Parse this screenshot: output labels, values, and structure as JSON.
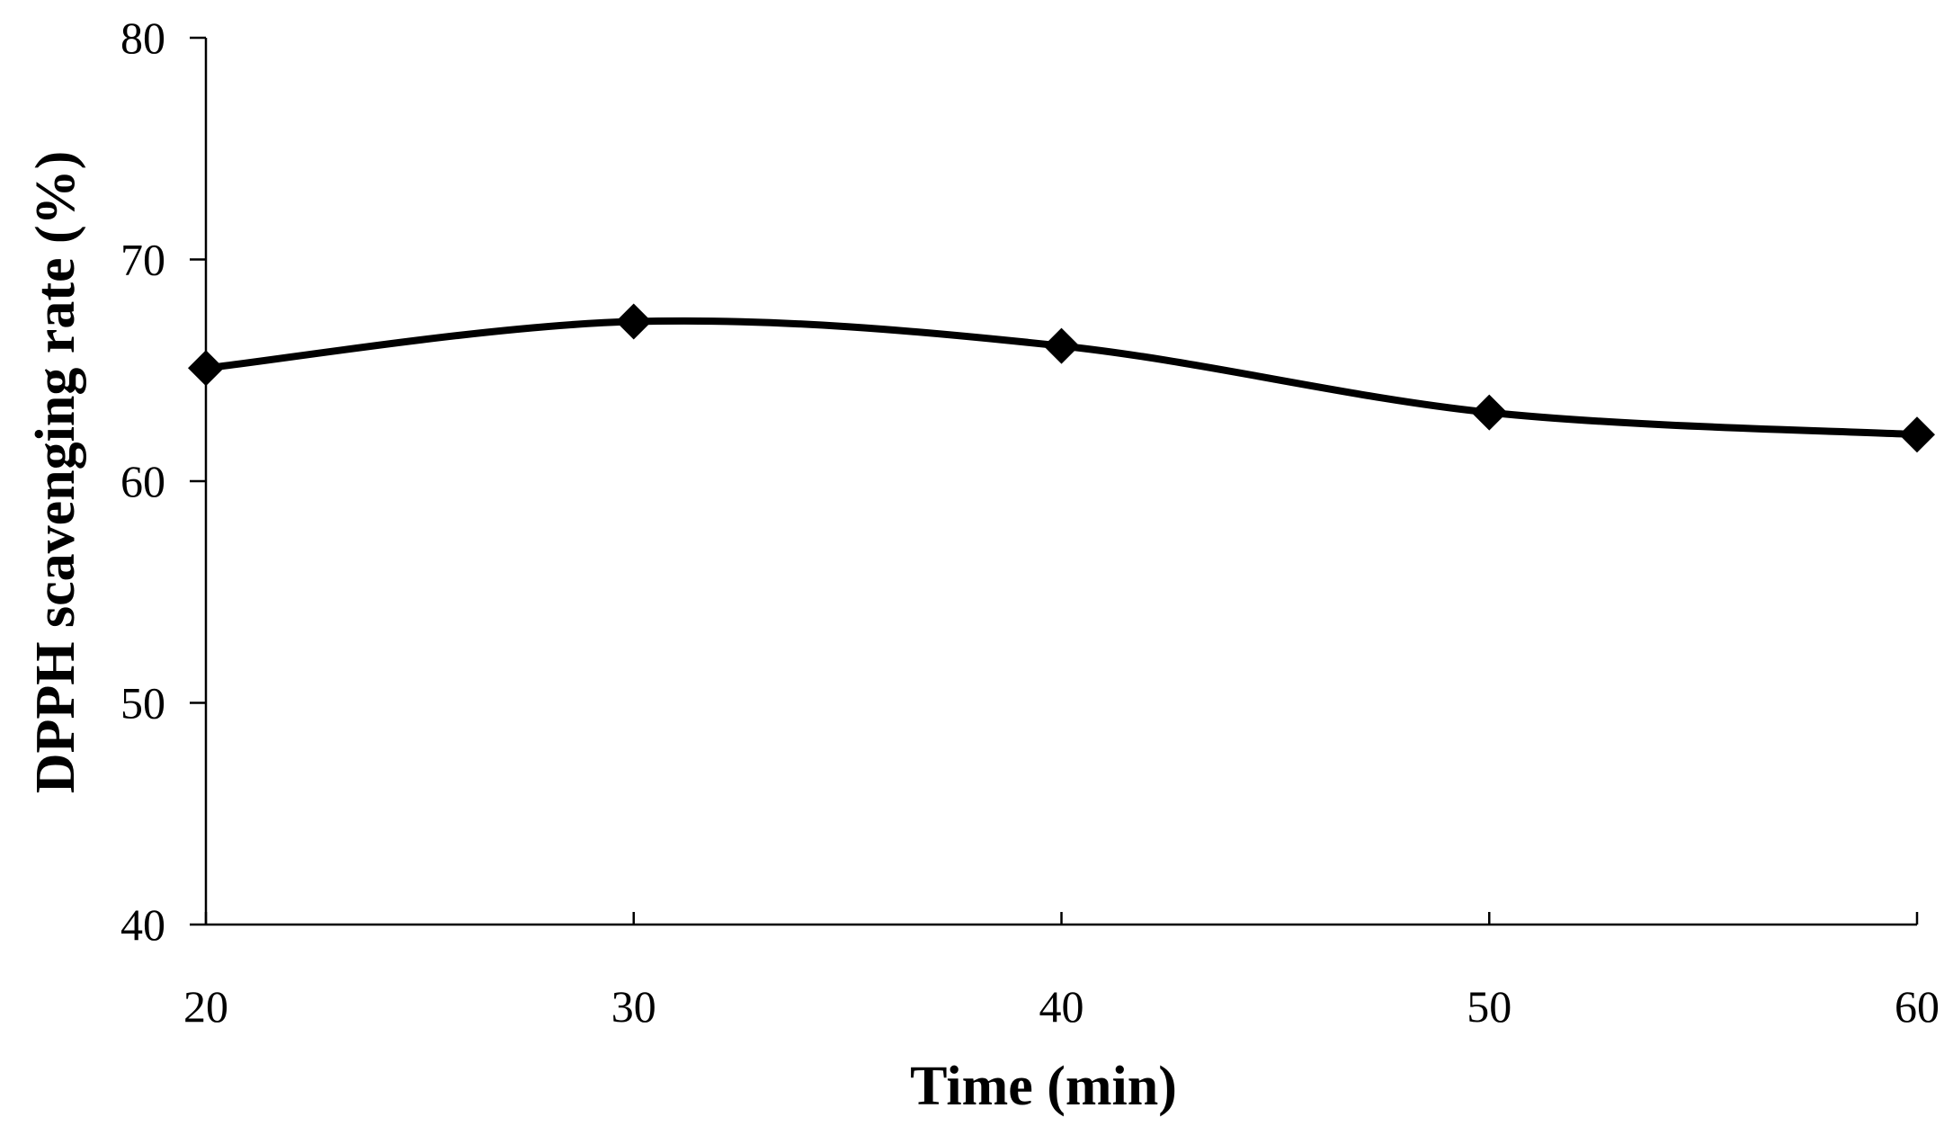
{
  "chart_data": {
    "type": "line",
    "title": "",
    "xlabel": "Time (min)",
    "ylabel": "DPPH scavenging rate (%)",
    "x": [
      20,
      30,
      40,
      50,
      60
    ],
    "series": [
      {
        "values": [
          65.1,
          67.2,
          66.1,
          63.1,
          62.1
        ],
        "marker": "diamond",
        "color": "#000000",
        "smooth": true
      }
    ],
    "xlim": [
      20,
      60
    ],
    "ylim": [
      40,
      80
    ],
    "xticks": [
      20,
      30,
      40,
      50,
      60
    ],
    "yticks": [
      40,
      50,
      60,
      70,
      80
    ],
    "xtick_labels": [
      "20",
      "30",
      "40",
      "50",
      "60"
    ],
    "ytick_labels": [
      "40",
      "50",
      "60",
      "70",
      "80"
    ],
    "grid": false,
    "legend": "none"
  }
}
